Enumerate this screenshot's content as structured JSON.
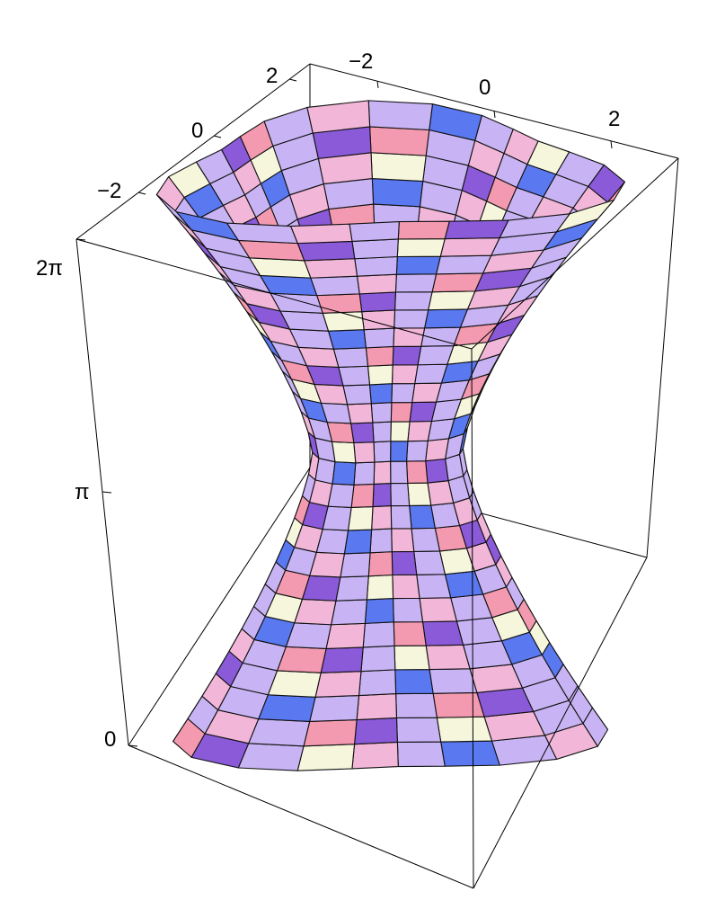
{
  "chart_data": {
    "type": "surface3d",
    "title": "",
    "axes": {
      "x": {
        "label": "",
        "range": [
          -3,
          3
        ],
        "ticks": [
          -2,
          0,
          2
        ]
      },
      "y": {
        "label": "",
        "range": [
          -3,
          3
        ],
        "ticks": [
          -2,
          0,
          2
        ]
      },
      "z": {
        "label": "",
        "range": [
          0,
          6.2832
        ],
        "ticks": [
          0,
          3.1416,
          6.2832
        ]
      }
    },
    "tick_labels": {
      "top_back": [
        "−2",
        "0",
        "2"
      ],
      "top_left": [
        "2",
        "0",
        "−2"
      ],
      "vertical": [
        "0",
        "π",
        "2π"
      ]
    },
    "surface": {
      "description_values": {
        "neck_radius": 0.9,
        "top_radius": 2.8,
        "bottom_radius": 2.6,
        "lobes": 3
      }
    },
    "colors": {
      "pink": "#f2b6d8",
      "lavender": "#c8b4f4",
      "blue": "#5a78f0",
      "purple": "#8a5ad8",
      "cream": "#f6f6dc",
      "salmon": "#f49ab0"
    }
  }
}
